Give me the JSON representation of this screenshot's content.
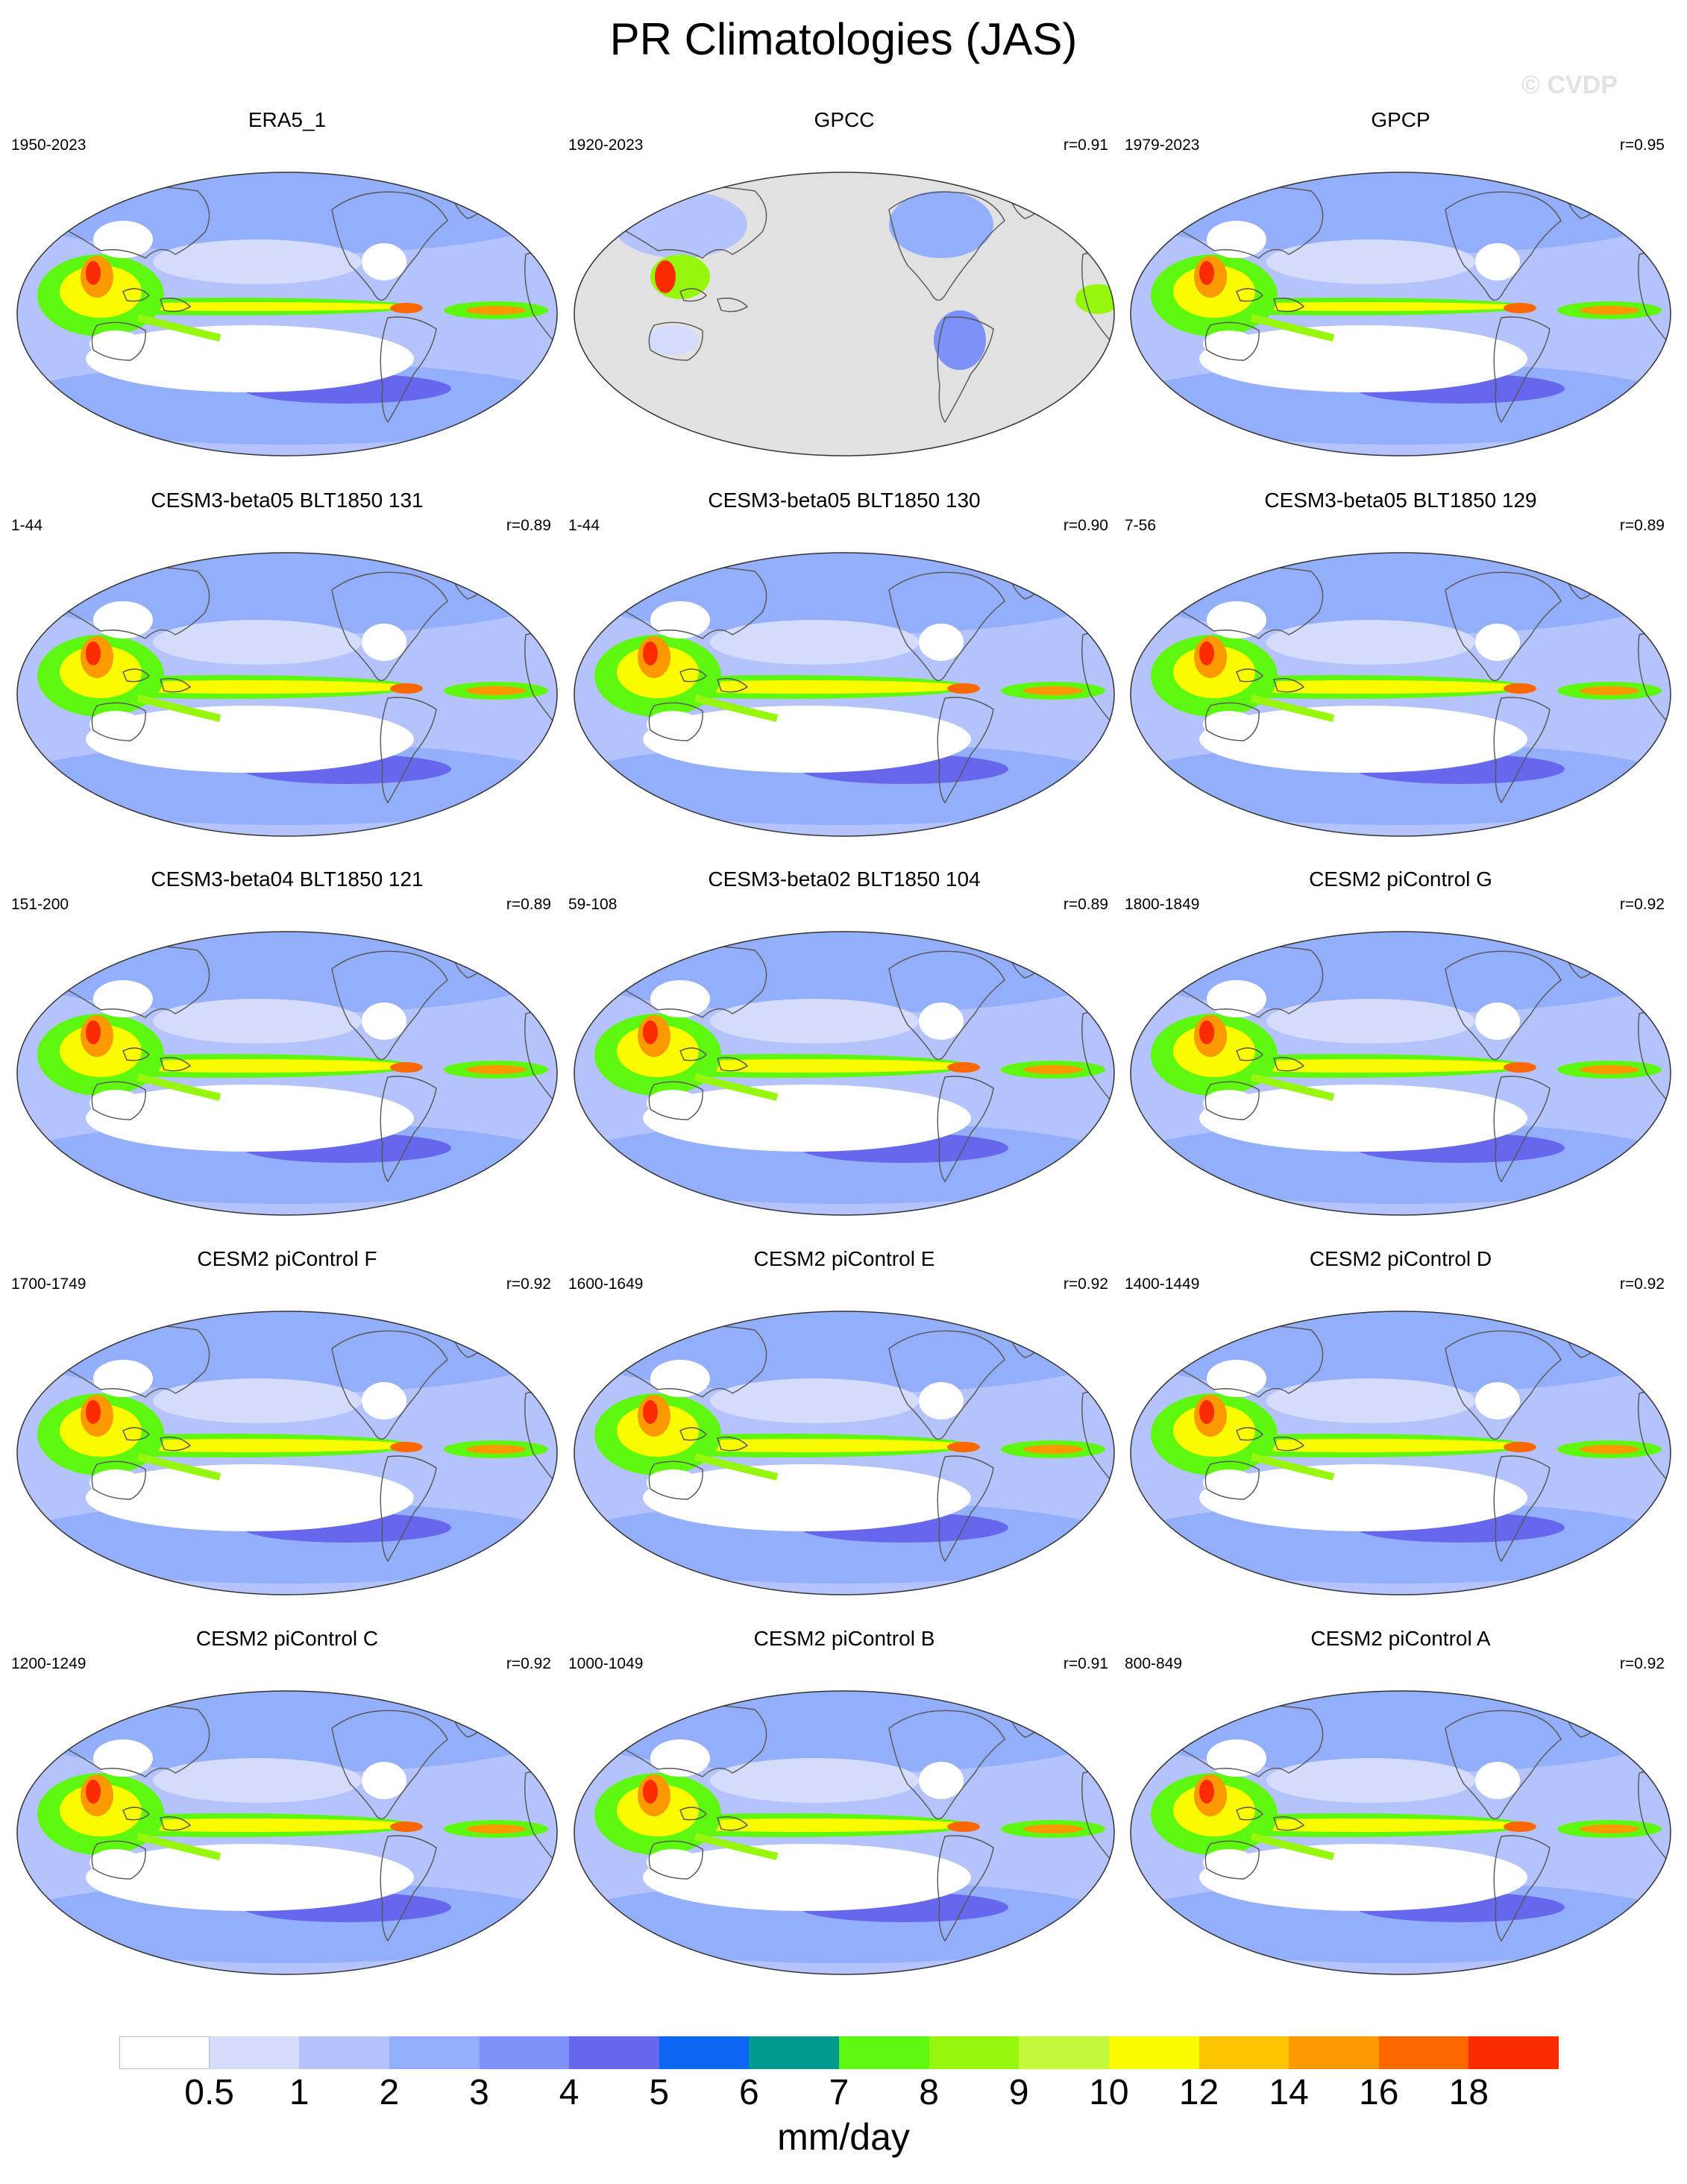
{
  "title": "PR Climatologies (JAS)",
  "watermark": "© CVDP",
  "panels": [
    {
      "title": "ERA5_1",
      "period": "1950-2023",
      "corr": "",
      "type": "obs"
    },
    {
      "title": "GPCC",
      "period": "1920-2023",
      "corr": "r=0.91",
      "type": "land"
    },
    {
      "title": "GPCP",
      "period": "1979-2023",
      "corr": "r=0.95",
      "type": "obs"
    },
    {
      "title": "CESM3-beta05 BLT1850 131",
      "period": "1-44",
      "corr": "r=0.89",
      "type": "model"
    },
    {
      "title": "CESM3-beta05 BLT1850 130",
      "period": "1-44",
      "corr": "r=0.90",
      "type": "model"
    },
    {
      "title": "CESM3-beta05 BLT1850 129",
      "period": "7-56",
      "corr": "r=0.89",
      "type": "model"
    },
    {
      "title": "CESM3-beta04 BLT1850 121",
      "period": "151-200",
      "corr": "r=0.89",
      "type": "model"
    },
    {
      "title": "CESM3-beta02 BLT1850 104",
      "period": "59-108",
      "corr": "r=0.89",
      "type": "model"
    },
    {
      "title": "CESM2 piControl G",
      "period": "1800-1849",
      "corr": "r=0.92",
      "type": "model"
    },
    {
      "title": "CESM2 piControl F",
      "period": "1700-1749",
      "corr": "r=0.92",
      "type": "model"
    },
    {
      "title": "CESM2 piControl E",
      "period": "1600-1649",
      "corr": "r=0.92",
      "type": "model"
    },
    {
      "title": "CESM2 piControl D",
      "period": "1400-1449",
      "corr": "r=0.92",
      "type": "model"
    },
    {
      "title": "CESM2 piControl C",
      "period": "1200-1249",
      "corr": "r=0.92",
      "type": "model"
    },
    {
      "title": "CESM2 piControl B",
      "period": "1000-1049",
      "corr": "r=0.91",
      "type": "model"
    },
    {
      "title": "CESM2 piControl A",
      "period": "800-849",
      "corr": "r=0.92",
      "type": "model"
    }
  ],
  "colorbar": {
    "colors": [
      "#ffffff",
      "#d5dcfb",
      "#b4c3fb",
      "#93aefb",
      "#7d91f8",
      "#6767ee",
      "#0e66f5",
      "#00998f",
      "#5ef70f",
      "#96f60c",
      "#c2f73a",
      "#fbfb00",
      "#fcc300",
      "#fc9900",
      "#fc6800",
      "#fc2b00"
    ],
    "labels": [
      "0.5",
      "1",
      "2",
      "3",
      "4",
      "5",
      "6",
      "7",
      "8",
      "9",
      "10",
      "12",
      "14",
      "16",
      "18"
    ],
    "units": "mm/day",
    "missing_color": "#e1e1e1"
  }
}
